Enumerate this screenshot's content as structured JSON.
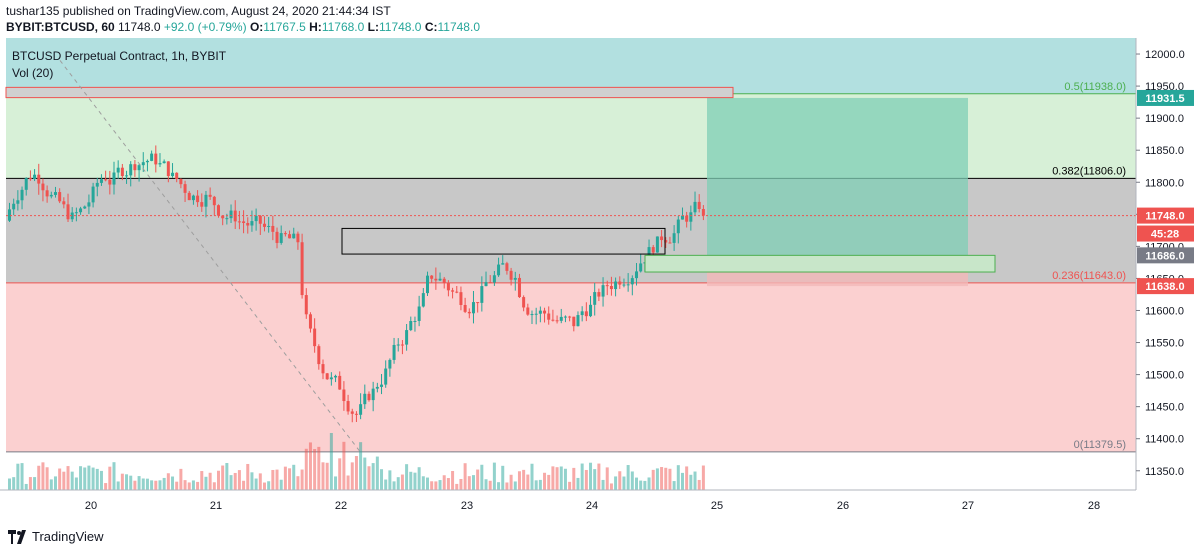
{
  "header": {
    "publisher": "tushar135 published on TradingView.com, August 24, 2020 21:44:34 IST",
    "symbol": "BYBIT:BTCUSD, 60",
    "last": "11748.0",
    "change": "+92.0 (+0.79%)",
    "o_label": "O:",
    "o": "11767.5",
    "h_label": "H:",
    "h": "11768.0",
    "l_label": "L:",
    "l": "11748.0",
    "c_label": "C:",
    "c": "11748.0"
  },
  "legend": {
    "title": "BTCUSD Perpetual Contract, 1h, BYBIT",
    "vol": "Vol (20)"
  },
  "footer": {
    "brand": "TradingView"
  },
  "colors": {
    "up": "#26a69a",
    "down": "#ef5350",
    "fib_top": "#b2e0e0",
    "fib_mid_high": "#d7f0d7",
    "fib_mid": "#c8c8c8",
    "fib_low": "#fbd0d0",
    "target_box": "#7fcfb5",
    "stop_box": "#f2b8b8",
    "price_tag_red": "#ef5350",
    "price_tag_green": "#26a69a",
    "price_tag_gray": "#787b86"
  },
  "chart_data": {
    "type": "candlestick",
    "ylim": [
      11320,
      12025
    ],
    "y_ticks": [
      "12000.0",
      "11950.0",
      "11900.0",
      "11850.0",
      "11800.0",
      "11750.0",
      "11700.0",
      "11650.0",
      "11600.0",
      "11550.0",
      "11500.0",
      "11450.0",
      "11400.0",
      "11350.0"
    ],
    "x_ticks": [
      "20",
      "21",
      "22",
      "23",
      "24",
      "25",
      "26",
      "27",
      "28"
    ],
    "fib_levels": [
      {
        "label": "0.5(11938.0)",
        "value": 11938.0
      },
      {
        "label": "0.382(11806.0)",
        "value": 11806.0
      },
      {
        "label": "0.236(11643.0)",
        "value": 11643.0
      },
      {
        "label": "0(11379.5)",
        "value": 11379.5
      }
    ],
    "price_tags": [
      {
        "label": "11931.5",
        "value": 11931.5,
        "kind": "green"
      },
      {
        "label": "11748.0",
        "value": 11748.0,
        "kind": "red"
      },
      {
        "label": "45:28",
        "value": 11720.0,
        "kind": "red"
      },
      {
        "label": "11686.0",
        "value": 11686.0,
        "kind": "gray"
      },
      {
        "label": "11638.0",
        "value": 11638.0,
        "kind": "red"
      }
    ],
    "position": {
      "entry": 11686.0,
      "target": 11931.5,
      "stop": 11638.0
    },
    "candles_summary": {
      "start_day": "19",
      "end": "Aug 24 21:00",
      "last_close": 11748.0
    }
  }
}
